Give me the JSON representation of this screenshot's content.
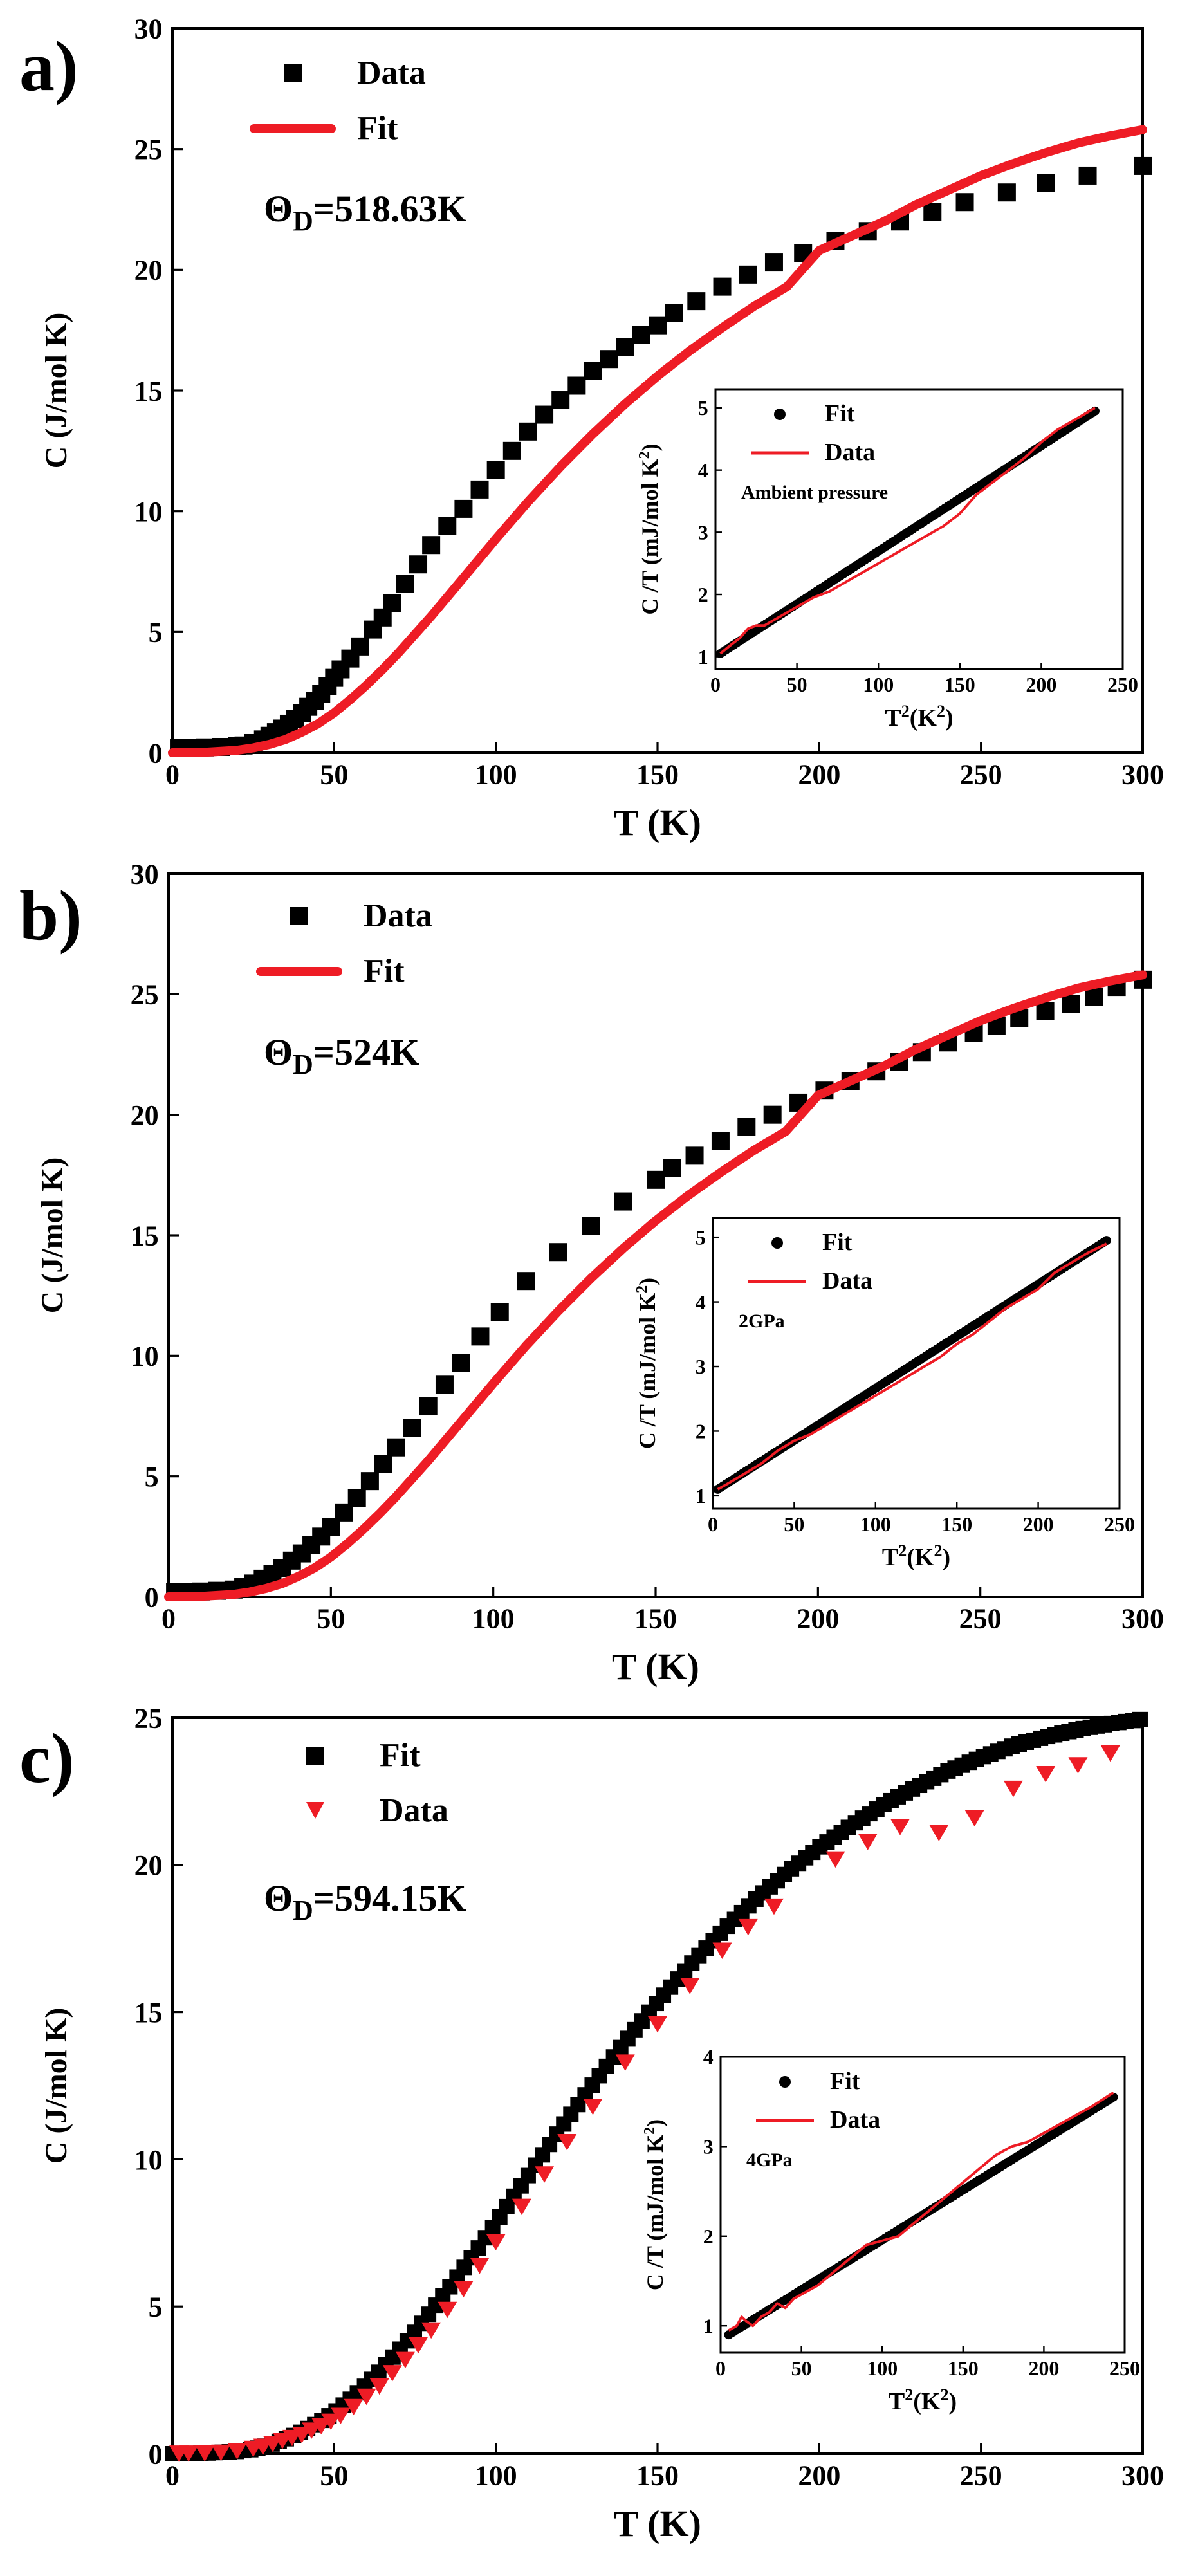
{
  "colors": {
    "black": "#000000",
    "red": "#ee1c25"
  },
  "chart_data": [
    {
      "type": "scatter",
      "panel_label": "a)",
      "xlabel": "T (K)",
      "ylabel": "C  (J/mol K)",
      "xlim": [
        0,
        300
      ],
      "ylim": [
        0,
        30
      ],
      "xticks": [
        0,
        50,
        100,
        150,
        200,
        250,
        300
      ],
      "yticks": [
        0,
        5,
        10,
        15,
        20,
        25,
        30
      ],
      "annotation_symbol": "Θ",
      "annotation_sub": "D",
      "annotation_value": "=518.63K",
      "legend": [
        {
          "label": "Data",
          "kind": "square",
          "color": "#000000"
        },
        {
          "label": "Fit",
          "kind": "line",
          "color": "#ee1c25"
        }
      ],
      "series": [
        {
          "name": "Data",
          "kind": "square",
          "color": "#000000",
          "x": [
            2,
            5,
            10,
            15,
            20,
            22,
            25,
            28,
            30,
            32,
            34,
            36,
            38,
            40,
            42,
            44,
            46,
            48,
            50,
            52,
            55,
            58,
            62,
            65,
            68,
            72,
            76,
            80,
            85,
            90,
            95,
            100,
            105,
            110,
            115,
            120,
            125,
            130,
            135,
            140,
            145,
            150,
            155,
            162,
            170,
            178,
            186,
            195,
            205,
            215,
            225,
            235,
            245,
            258,
            270,
            283,
            300
          ],
          "y": [
            0.2,
            0.2,
            0.22,
            0.24,
            0.28,
            0.3,
            0.4,
            0.55,
            0.7,
            0.85,
            1.0,
            1.2,
            1.4,
            1.65,
            1.9,
            2.15,
            2.45,
            2.75,
            3.1,
            3.45,
            3.9,
            4.4,
            5.1,
            5.6,
            6.2,
            7.0,
            7.8,
            8.6,
            9.4,
            10.1,
            10.9,
            11.7,
            12.5,
            13.3,
            14.0,
            14.6,
            15.2,
            15.8,
            16.3,
            16.8,
            17.3,
            17.7,
            18.2,
            18.7,
            19.3,
            19.8,
            20.3,
            20.7,
            21.2,
            21.6,
            22.0,
            22.4,
            22.8,
            23.2,
            23.6,
            23.9,
            24.3
          ]
        },
        {
          "name": "Fit",
          "kind": "line",
          "color": "#ee1c25",
          "x": [
            0,
            10,
            20,
            25,
            30,
            35,
            40,
            45,
            50,
            55,
            60,
            65,
            70,
            75,
            80,
            85,
            90,
            95,
            100,
            110,
            120,
            130,
            140,
            150,
            160,
            170,
            180,
            190,
            200,
            210,
            220,
            230,
            240,
            250,
            260,
            270,
            280,
            290,
            300
          ],
          "y": [
            0,
            0.02,
            0.1,
            0.2,
            0.35,
            0.55,
            0.85,
            1.2,
            1.65,
            2.2,
            2.8,
            3.45,
            4.15,
            4.9,
            5.65,
            6.45,
            7.25,
            8.05,
            8.85,
            10.4,
            11.85,
            13.2,
            14.45,
            15.6,
            16.65,
            17.6,
            18.5,
            19.3,
            20.8,
            21.4,
            22.0,
            22.7,
            23.3,
            23.9,
            24.4,
            24.85,
            25.25,
            25.55,
            25.8
          ]
        }
      ],
      "inset": {
        "label": "Ambient pressure",
        "xlabel_base": "T",
        "xlabel_sup": "2",
        "xlabel_tail": "(K",
        "xlabel_sup2": "2",
        "xlabel_end": ")",
        "ylabel_base": "C /T (mJ/mol K",
        "ylabel_sup": "2",
        "ylabel_end": ")",
        "xlim": [
          0,
          250
        ],
        "ylim": [
          0.8,
          5.3
        ],
        "xticks": [
          0,
          50,
          100,
          150,
          200,
          250
        ],
        "yticks": [
          1,
          2,
          3,
          4,
          5
        ],
        "legend": [
          {
            "label": "Fit",
            "kind": "dot",
            "color": "#000000"
          },
          {
            "label": "Data",
            "kind": "line",
            "color": "#ee1c25"
          }
        ],
        "series": [
          {
            "name": "Fit",
            "kind": "dots",
            "color": "#000000",
            "x": [
              3,
              233
            ],
            "y": [
              1.05,
              4.95
            ]
          },
          {
            "name": "Data",
            "kind": "line",
            "color": "#ee1c25",
            "x": [
              3,
              10,
              15,
              20,
              25,
              30,
              40,
              50,
              60,
              70,
              80,
              90,
              100,
              110,
              120,
              130,
              140,
              150,
              160,
              170,
              180,
              190,
              200,
              210,
              220,
              233
            ],
            "y": [
              1.05,
              1.2,
              1.3,
              1.45,
              1.5,
              1.5,
              1.65,
              1.8,
              1.95,
              2.05,
              2.2,
              2.35,
              2.5,
              2.65,
              2.8,
              2.95,
              3.1,
              3.3,
              3.6,
              3.8,
              4.0,
              4.2,
              4.45,
              4.65,
              4.8,
              5.0
            ]
          }
        ]
      }
    },
    {
      "type": "scatter",
      "panel_label": "b)",
      "xlabel": "T (K)",
      "ylabel": "C  (J/mol K)",
      "xlim": [
        0,
        300
      ],
      "ylim": [
        0,
        30
      ],
      "xticks": [
        0,
        50,
        100,
        150,
        200,
        250,
        300
      ],
      "yticks": [
        0,
        5,
        10,
        15,
        20,
        25,
        30
      ],
      "annotation_symbol": "Θ",
      "annotation_sub": "D",
      "annotation_value": "=524K",
      "legend": [
        {
          "label": "Data",
          "kind": "square",
          "color": "#000000"
        },
        {
          "label": "Fit",
          "kind": "line",
          "color": "#ee1c25"
        }
      ],
      "series": [
        {
          "name": "Data",
          "kind": "square",
          "color": "#000000",
          "x": [
            2,
            5,
            10,
            15,
            20,
            23,
            26,
            29,
            32,
            35,
            38,
            41,
            44,
            47,
            50,
            54,
            58,
            62,
            66,
            70,
            75,
            80,
            85,
            90,
            96,
            102,
            110,
            120,
            130,
            140,
            150,
            155,
            162,
            170,
            178,
            186,
            194,
            202,
            210,
            218,
            225,
            232,
            240,
            248,
            255,
            262,
            270,
            278,
            285,
            292,
            300
          ],
          "y": [
            0.2,
            0.2,
            0.22,
            0.25,
            0.3,
            0.4,
            0.55,
            0.75,
            0.95,
            1.2,
            1.5,
            1.8,
            2.15,
            2.5,
            2.9,
            3.5,
            4.1,
            4.8,
            5.5,
            6.2,
            7.0,
            7.9,
            8.8,
            9.7,
            10.8,
            11.8,
            13.1,
            14.3,
            15.4,
            16.4,
            17.3,
            17.8,
            18.3,
            18.9,
            19.5,
            20.0,
            20.5,
            21.0,
            21.4,
            21.8,
            22.2,
            22.6,
            23.0,
            23.4,
            23.7,
            24.0,
            24.3,
            24.6,
            24.9,
            25.3,
            25.6
          ]
        },
        {
          "name": "Fit",
          "kind": "line",
          "color": "#ee1c25",
          "x": [
            0,
            10,
            20,
            25,
            30,
            35,
            40,
            45,
            50,
            55,
            60,
            65,
            70,
            75,
            80,
            85,
            90,
            95,
            100,
            110,
            120,
            130,
            140,
            150,
            160,
            170,
            180,
            190,
            200,
            210,
            220,
            230,
            240,
            250,
            260,
            270,
            280,
            290,
            300
          ],
          "y": [
            0,
            0.02,
            0.1,
            0.2,
            0.35,
            0.55,
            0.85,
            1.2,
            1.65,
            2.2,
            2.8,
            3.45,
            4.15,
            4.9,
            5.65,
            6.45,
            7.25,
            8.05,
            8.85,
            10.4,
            11.85,
            13.2,
            14.45,
            15.6,
            16.65,
            17.6,
            18.5,
            19.3,
            20.8,
            21.4,
            22.0,
            22.7,
            23.3,
            23.9,
            24.4,
            24.85,
            25.25,
            25.55,
            25.8
          ]
        }
      ],
      "inset": {
        "label": "2GPa",
        "xlabel_base": "T",
        "xlabel_sup": "2",
        "xlabel_tail": "(K",
        "xlabel_sup2": "2",
        "xlabel_end": ")",
        "ylabel_base": "C /T (mJ/mol K",
        "ylabel_sup": "2",
        "ylabel_end": ")",
        "xlim": [
          0,
          250
        ],
        "ylim": [
          0.8,
          5.3
        ],
        "xticks": [
          0,
          50,
          100,
          150,
          200,
          250
        ],
        "yticks": [
          1,
          2,
          3,
          4,
          5
        ],
        "legend": [
          {
            "label": "Fit",
            "kind": "dot",
            "color": "#000000"
          },
          {
            "label": "Data",
            "kind": "line",
            "color": "#ee1c25"
          }
        ],
        "series": [
          {
            "name": "Fit",
            "kind": "dots",
            "color": "#000000",
            "x": [
              3,
              242
            ],
            "y": [
              1.1,
              4.95
            ]
          },
          {
            "name": "Data",
            "kind": "line",
            "color": "#ee1c25",
            "x": [
              3,
              10,
              20,
              30,
              40,
              50,
              55,
              60,
              70,
              80,
              90,
              100,
              110,
              120,
              130,
              140,
              150,
              160,
              170,
              180,
              190,
              200,
              210,
              220,
              230,
              242
            ],
            "y": [
              1.1,
              1.2,
              1.35,
              1.5,
              1.7,
              1.85,
              1.9,
              1.95,
              2.1,
              2.25,
              2.4,
              2.55,
              2.7,
              2.85,
              3.0,
              3.15,
              3.35,
              3.5,
              3.7,
              3.9,
              4.05,
              4.2,
              4.45,
              4.6,
              4.75,
              4.9
            ]
          }
        ]
      }
    },
    {
      "type": "scatter",
      "panel_label": "c)",
      "xlabel": "T (K)",
      "ylabel": "C  (J/mol K)",
      "xlim": [
        0,
        300
      ],
      "ylim": [
        0,
        25
      ],
      "xticks": [
        0,
        50,
        100,
        150,
        200,
        250,
        300
      ],
      "yticks": [
        0,
        5,
        10,
        15,
        20,
        25
      ],
      "annotation_symbol": "Θ",
      "annotation_sub": "D",
      "annotation_value": "=594.15K",
      "legend": [
        {
          "label": "Fit",
          "kind": "square",
          "color": "#000000"
        },
        {
          "label": "Data",
          "kind": "triangle",
          "color": "#ee1c25"
        }
      ],
      "series": [
        {
          "name": "Fit",
          "kind": "dense_squares",
          "color": "#000000",
          "x": [
            0,
            10,
            20,
            25,
            30,
            35,
            40,
            45,
            50,
            55,
            60,
            65,
            70,
            75,
            80,
            85,
            90,
            95,
            100,
            105,
            110,
            115,
            120,
            130,
            140,
            150,
            160,
            170,
            180,
            190,
            200,
            210,
            220,
            230,
            240,
            250,
            260,
            270,
            280,
            290,
            300
          ],
          "y": [
            0,
            0.02,
            0.08,
            0.15,
            0.3,
            0.5,
            0.75,
            1.05,
            1.4,
            1.85,
            2.35,
            2.9,
            3.5,
            4.15,
            4.85,
            5.55,
            6.3,
            7.05,
            7.85,
            8.65,
            9.45,
            10.25,
            11.05,
            12.55,
            14.0,
            15.35,
            16.6,
            17.75,
            18.8,
            19.75,
            20.6,
            21.35,
            22.05,
            22.65,
            23.2,
            23.65,
            24.05,
            24.35,
            24.6,
            24.8,
            24.95
          ]
        },
        {
          "name": "Data",
          "kind": "triangle",
          "color": "#ee1c25",
          "x": [
            2,
            5,
            10,
            15,
            20,
            25,
            28,
            31,
            34,
            37,
            40,
            43,
            46,
            49,
            52,
            56,
            60,
            64,
            68,
            72,
            76,
            80,
            85,
            90,
            95,
            100,
            108,
            115,
            122,
            130,
            140,
            150,
            160,
            170,
            178,
            186,
            205,
            215,
            225,
            237,
            248,
            260,
            270,
            280,
            290
          ],
          "y": [
            0.02,
            0.02,
            0.03,
            0.05,
            0.1,
            0.18,
            0.25,
            0.35,
            0.45,
            0.55,
            0.65,
            0.8,
            0.95,
            1.1,
            1.3,
            1.6,
            1.95,
            2.3,
            2.75,
            3.2,
            3.7,
            4.2,
            4.9,
            5.6,
            6.4,
            7.2,
            8.4,
            9.5,
            10.6,
            11.8,
            13.3,
            14.6,
            15.9,
            17.1,
            17.9,
            18.6,
            20.2,
            20.8,
            21.3,
            21.1,
            21.6,
            22.6,
            23.1,
            23.4,
            23.8
          ]
        }
      ],
      "inset": {
        "label": "4GPa",
        "xlabel_base": "T",
        "xlabel_sup": "2",
        "xlabel_tail": "(K",
        "xlabel_sup2": "2",
        "xlabel_end": ")",
        "ylabel_base": "C /T (mJ/mol K",
        "ylabel_sup": "2",
        "ylabel_end": ")",
        "xlim": [
          0,
          250
        ],
        "ylim": [
          0.7,
          4.0
        ],
        "xticks": [
          0,
          50,
          100,
          150,
          200,
          250
        ],
        "yticks": [
          1,
          2,
          3,
          4
        ],
        "legend": [
          {
            "label": "Fit",
            "kind": "dot",
            "color": "#000000"
          },
          {
            "label": "Data",
            "kind": "line",
            "color": "#ee1c25"
          }
        ],
        "series": [
          {
            "name": "Fit",
            "kind": "dots",
            "color": "#000000",
            "x": [
              5,
              243
            ],
            "y": [
              0.9,
              3.55
            ]
          },
          {
            "name": "Data",
            "kind": "line",
            "color": "#ee1c25",
            "x": [
              5,
              10,
              13,
              16,
              20,
              25,
              30,
              35,
              40,
              45,
              50,
              60,
              70,
              80,
              90,
              100,
              110,
              120,
              130,
              140,
              150,
              160,
              170,
              180,
              190,
              200,
              210,
              220,
              230,
              243
            ],
            "y": [
              0.95,
              1.0,
              1.1,
              1.05,
              1.0,
              1.1,
              1.15,
              1.25,
              1.2,
              1.3,
              1.35,
              1.45,
              1.6,
              1.75,
              1.9,
              1.95,
              2.0,
              2.15,
              2.3,
              2.45,
              2.6,
              2.75,
              2.9,
              3.0,
              3.05,
              3.15,
              3.25,
              3.35,
              3.45,
              3.6
            ]
          }
        ]
      }
    }
  ]
}
